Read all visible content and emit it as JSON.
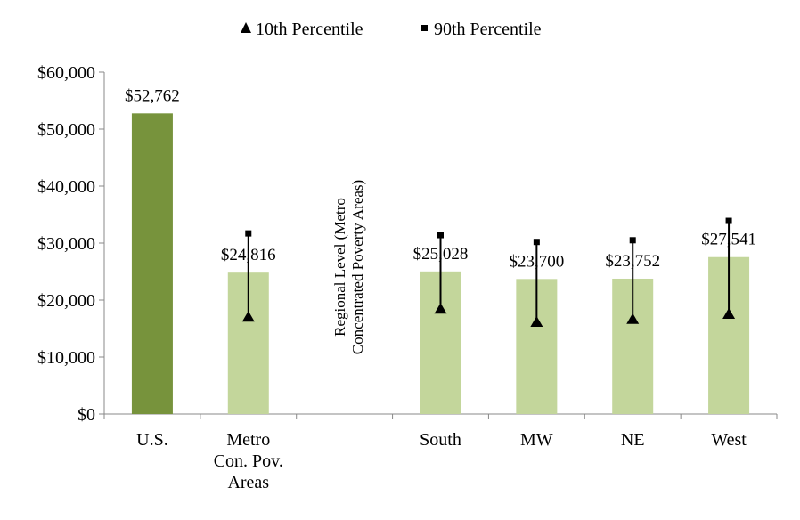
{
  "chart_data": {
    "type": "bar",
    "title": "",
    "xlabel": "",
    "ylabel": "",
    "ylim": [
      0,
      60000
    ],
    "yticks": [
      "$0",
      "$10,000",
      "$20,000",
      "$30,000",
      "$40,000",
      "$50,000",
      "$60,000"
    ],
    "ytick_values": [
      0,
      10000,
      20000,
      30000,
      40000,
      50000,
      60000
    ],
    "grid": false,
    "legend_position": "top",
    "legend": [
      {
        "name": "10th Percentile",
        "marker": "triangle"
      },
      {
        "name": "90th Percentile",
        "marker": "square"
      }
    ],
    "categories": [
      [
        "U.S."
      ],
      [
        "Metro",
        "Con. Pov.",
        "Areas"
      ],
      [],
      [
        "South"
      ],
      [
        "MW"
      ],
      [
        "NE"
      ],
      [
        "West"
      ]
    ],
    "values": [
      52762,
      24816,
      null,
      25028,
      23700,
      23752,
      27541
    ],
    "data_labels": [
      "$52,762",
      "$24,816",
      "",
      "$25,028",
      "$23,700",
      "$23,752",
      "$27,541"
    ],
    "bar_colors": [
      "#77933c",
      "#c3d69b",
      null,
      "#c3d69b",
      "#c3d69b",
      "#c3d69b",
      "#c3d69b"
    ],
    "p10": [
      null,
      17000,
      null,
      18400,
      16100,
      16600,
      17500
    ],
    "p90": [
      null,
      31700,
      null,
      31400,
      30200,
      30500,
      33900
    ],
    "annotation": [
      "Regional Level (Metro",
      "Concentrated Poverty Areas)"
    ]
  }
}
